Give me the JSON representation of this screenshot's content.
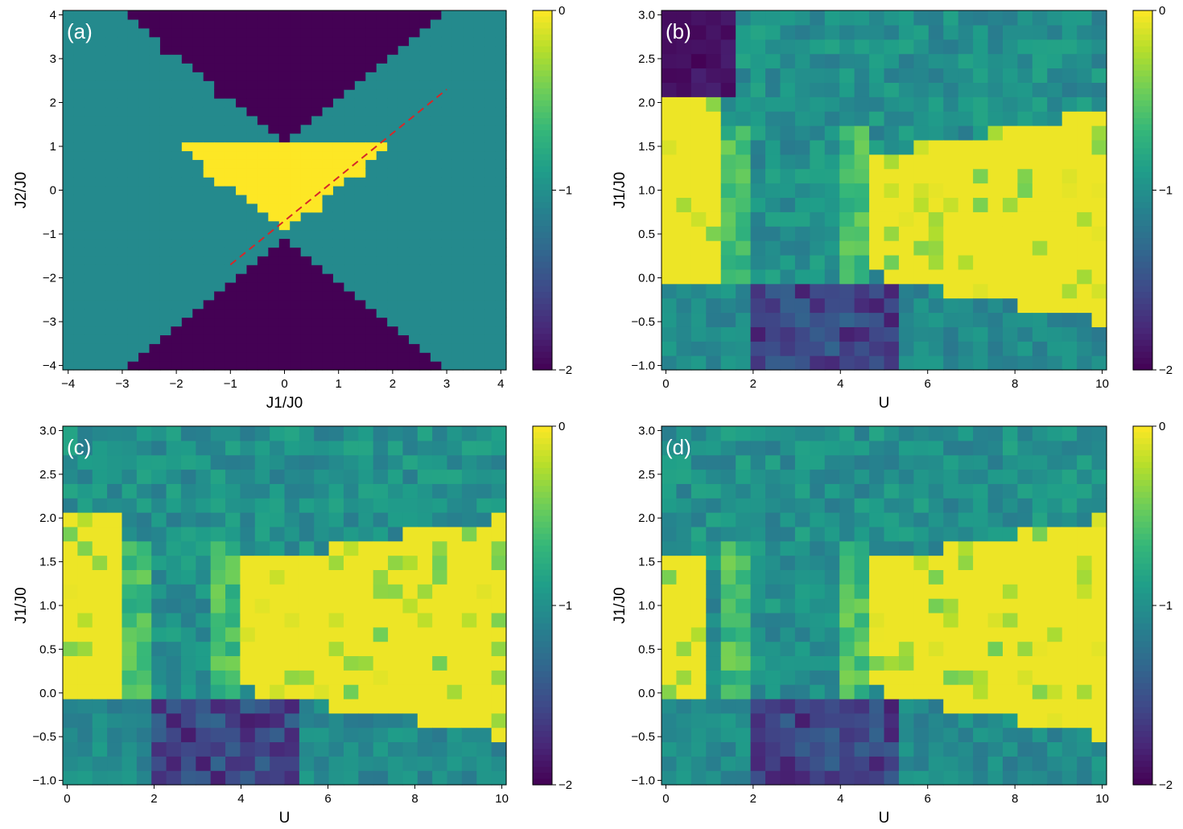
{
  "chart_data": [
    {
      "type": "heatmap",
      "panel_label": "(a)",
      "xlabel": "J1/J0",
      "ylabel": "J2/J0",
      "xlim": [
        -4.1,
        4.1
      ],
      "ylim": [
        -4.1,
        4.1
      ],
      "xticks": [
        "−4",
        "−3",
        "−2",
        "−1",
        "0",
        "1",
        "2",
        "3",
        "4"
      ],
      "yticks": [
        "−4",
        "−3",
        "−2",
        "−1",
        "0",
        "1",
        "2",
        "3",
        "4"
      ],
      "phase_values": {
        "top_and_bottom_cones": -2,
        "side_regions": -1,
        "central_triangle": 0
      },
      "phase_boundaries": {
        "upper_cone": "J2 > |J1| + 1 (top) ; triangle 0 < ... J2 > |J1| - 1, J2 <= 1",
        "lower_cone": "J2 < -|J1| - 1"
      },
      "dashed_line": {
        "from": [
          -1.0,
          -1.7
        ],
        "to": [
          3.0,
          2.3
        ],
        "color": "#d62728"
      },
      "colorbar": {
        "min": -2,
        "max": 0,
        "ticks": [
          "−2",
          "−1",
          "0"
        ]
      }
    },
    {
      "type": "heatmap",
      "panel_label": "(b)",
      "xlabel": "U",
      "ylabel": "J1/J0",
      "xlim": [
        -0.1,
        10.1
      ],
      "ylim": [
        -1.05,
        3.05
      ],
      "xticks": [
        "0",
        "2",
        "4",
        "6",
        "8",
        "10"
      ],
      "yticks": [
        "−1.0",
        "−0.5",
        "0.0",
        "0.5",
        "1.0",
        "1.5",
        "2.0",
        "2.5",
        "3.0"
      ],
      "yellow_region_approx": {
        "U_low": [
          0.0,
          1.4
        ],
        "J1_range": [
          0.0,
          2.0
        ],
        "U_high": [
          4.5,
          10.0
        ],
        "J1_high_range": [
          -0.5,
          1.9
        ]
      },
      "colorbar": {
        "min": -2,
        "max": 0,
        "ticks": [
          "−2",
          "−1",
          "0"
        ]
      }
    },
    {
      "type": "heatmap",
      "panel_label": "(c)",
      "xlabel": "U",
      "ylabel": "J1/J0",
      "xlim": [
        -0.1,
        10.1
      ],
      "ylim": [
        -1.05,
        3.05
      ],
      "xticks": [
        "0",
        "2",
        "4",
        "6",
        "8",
        "10"
      ],
      "yticks": [
        "−1.0",
        "−0.5",
        "0.0",
        "0.5",
        "1.0",
        "1.5",
        "2.0",
        "2.5",
        "3.0"
      ],
      "yellow_region_approx": {
        "U_low": [
          0.0,
          1.4
        ],
        "J1_range": [
          0.0,
          2.0
        ],
        "U_high": [
          4.0,
          10.0
        ],
        "J1_high_range": [
          -0.5,
          2.0
        ]
      },
      "colorbar": {
        "min": -2,
        "max": 0,
        "ticks": [
          "−2",
          "−1",
          "0"
        ]
      }
    },
    {
      "type": "heatmap",
      "panel_label": "(d)",
      "xlabel": "U",
      "ylabel": "J1/J0",
      "xlim": [
        -0.1,
        10.1
      ],
      "ylim": [
        -1.05,
        3.05
      ],
      "xticks": [
        "0",
        "2",
        "4",
        "6",
        "8",
        "10"
      ],
      "yticks": [
        "−1.0",
        "−0.5",
        "0.0",
        "0.5",
        "1.0",
        "1.5",
        "2.0",
        "2.5",
        "3.0"
      ],
      "yellow_region_approx": {
        "U_low": [
          0.0,
          1.0
        ],
        "J1_range": [
          0.0,
          1.6
        ],
        "U_high": [
          4.5,
          10.0
        ],
        "J1_high_range": [
          -0.5,
          2.0
        ]
      },
      "colorbar": {
        "min": -2,
        "max": 0,
        "ticks": [
          "−2",
          "−1",
          "0"
        ]
      }
    }
  ],
  "colormap": [
    "#440154",
    "#482878",
    "#3e4a89",
    "#31688e",
    "#26828e",
    "#1f9e89",
    "#35b779",
    "#6ece58",
    "#b5de2b",
    "#fde725"
  ]
}
